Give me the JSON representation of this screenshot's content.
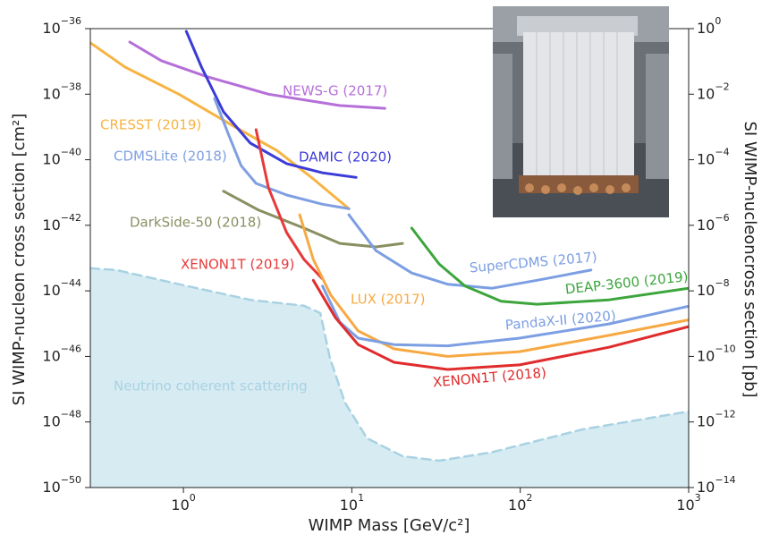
{
  "chart_data": {
    "type": "line",
    "xlabel": "WIMP Mass [GeV/c²]",
    "ylabel": "SI WIMP-nucleon cross section [cm²]",
    "y2label": "SI WIMP-nucleoncross section [pb]",
    "xscale": "log",
    "yscale": "log",
    "xlim": [
      0.28,
      1000
    ],
    "ylim": [
      1e-50,
      1e-36
    ],
    "y2lim": [
      1e-14,
      1
    ],
    "xticks": [
      {
        "value": 1,
        "label": "10",
        "exponent": "0"
      },
      {
        "value": 10,
        "label": "10",
        "exponent": "1"
      },
      {
        "value": 100,
        "label": "10",
        "exponent": "2"
      },
      {
        "value": 1000,
        "label": "10",
        "exponent": "3"
      }
    ],
    "yticks": [
      {
        "value": 1e-36,
        "label": "10",
        "exponent": "−36"
      },
      {
        "value": 1e-38,
        "label": "10",
        "exponent": "−38"
      },
      {
        "value": 1e-40,
        "label": "10",
        "exponent": "−40"
      },
      {
        "value": 1e-42,
        "label": "10",
        "exponent": "−42"
      },
      {
        "value": 1e-44,
        "label": "10",
        "exponent": "−44"
      },
      {
        "value": 1e-46,
        "label": "10",
        "exponent": "−46"
      },
      {
        "value": 1e-48,
        "label": "10",
        "exponent": "−48"
      },
      {
        "value": 1e-50,
        "label": "10",
        "exponent": "−50"
      }
    ],
    "y2ticks": [
      {
        "value": 1,
        "label": "10",
        "exponent": "0"
      },
      {
        "value": 0.01,
        "label": "10",
        "exponent": "−2"
      },
      {
        "value": 0.0001,
        "label": "10",
        "exponent": "−4"
      },
      {
        "value": 1e-06,
        "label": "10",
        "exponent": "−6"
      },
      {
        "value": 1e-08,
        "label": "10",
        "exponent": "−8"
      },
      {
        "value": 1e-10,
        "label": "10",
        "exponent": "−10"
      },
      {
        "value": 1e-12,
        "label": "10",
        "exponent": "−12"
      },
      {
        "value": 1e-14,
        "label": "10",
        "exponent": "−14"
      }
    ],
    "grid": false,
    "series": [
      {
        "name": "NEWS-G (2017)",
        "color": "#b56fd9",
        "x": [
          0.48,
          0.74,
          1.36,
          3.2,
          8.5,
          15.7
        ],
        "values": [
          3.9e-37,
          1.05e-37,
          3.5e-38,
          1e-38,
          4.5e-39,
          3.7e-39
        ]
      },
      {
        "name": "CRESST (2019)",
        "color": "#f6b442",
        "x": [
          0.28,
          0.45,
          0.94,
          1.96,
          3.6,
          5.9,
          9.6
        ],
        "values": [
          3.7e-37,
          6.7e-38,
          1e-38,
          1.1e-39,
          1.9e-40,
          2.6e-41,
          3.2e-42
        ]
      },
      {
        "name": "DAMIC (2020)",
        "color": "#3b3bd8",
        "x": [
          1.04,
          1.28,
          1.73,
          2.5,
          4.1,
          6.7,
          10.6
        ],
        "values": [
          8.3e-37,
          6.7e-38,
          2.9e-39,
          3.2e-40,
          7.6e-41,
          4e-41,
          2.9e-41
        ]
      },
      {
        "name": "CDMSLite (2018)",
        "color": "#7f9fe2",
        "x": [
          1.53,
          1.85,
          2.2,
          2.7,
          4.1,
          6.7,
          9.6
        ],
        "values": [
          7.4e-39,
          6e-40,
          6.6e-41,
          1.9e-41,
          8.4e-42,
          4.4e-42,
          3.2e-42
        ]
      },
      {
        "name": "DarkSide-50 (2018)",
        "color": "#8a8f62",
        "x": [
          1.73,
          2.8,
          5.2,
          8.5,
          13.9,
          20
        ],
        "values": [
          1.1e-41,
          2.9e-42,
          8.2e-43,
          2.8e-43,
          2.2e-43,
          2.8e-43
        ]
      },
      {
        "name": "XENON1T (2019)",
        "color": "#e8393a",
        "x": [
          2.7,
          3.2,
          4.1,
          5.2,
          6.7
        ],
        "values": [
          8.3e-40,
          1.4e-41,
          6e-43,
          9.1e-44,
          2.3e-44
        ]
      },
      {
        "name": "SuperCDMS (2017)",
        "color": "#7c9ee3",
        "x": [
          9.6,
          13.9,
          22.7,
          37,
          68,
          126,
          263
        ],
        "values": [
          2.1e-42,
          1.7e-43,
          3.5e-44,
          1.6e-44,
          1.2e-44,
          2.1e-44,
          4.3e-44
        ]
      },
      {
        "name": "LUX (2017)",
        "color": "#f6a943",
        "x": [
          4.9,
          5.9,
          7.5,
          10.9,
          17.8,
          37,
          99,
          336,
          1000
        ],
        "values": [
          2.1e-42,
          9.1e-44,
          7.4e-45,
          6e-46,
          1.7e-46,
          1e-46,
          1.4e-46,
          4.4e-46,
          1.3e-45
        ]
      },
      {
        "name": "DEAP-3600 (2019)",
        "color": "#3ca53c",
        "x": [
          22.7,
          33,
          47,
          77,
          126,
          336,
          1000
        ],
        "values": [
          8.2e-43,
          6.6e-44,
          1.4e-44,
          4.8e-45,
          3.9e-45,
          5.3e-45,
          1.2e-44
        ]
      },
      {
        "name": "PandaX-II (2020)",
        "color": "#7c9ee3",
        "x": [
          6.7,
          8.5,
          10.9,
          17.8,
          37,
          99,
          336,
          1000
        ],
        "values": [
          1.4e-44,
          1.1e-45,
          3.6e-46,
          2.3e-46,
          2.1e-46,
          3.6e-46,
          9.8e-46,
          3.4e-45
        ]
      },
      {
        "name": "XENON1T (2018)",
        "color": "#e02c2c",
        "x": [
          5.9,
          8.0,
          10.9,
          17.8,
          37,
          99,
          336,
          1000
        ],
        "values": [
          2.1e-44,
          1.5e-45,
          2.3e-46,
          6.6e-47,
          4e-47,
          5.5e-47,
          1.9e-46,
          8.1e-46
        ]
      },
      {
        "name": "Neutrino coherent scattering",
        "color": "#a8d2e2",
        "fill": "#d7ebf3",
        "dashed": true,
        "area": true,
        "x": [
          0.28,
          0.4,
          0.94,
          2.5,
          5.2,
          6.5,
          7.4,
          9.1,
          12.3,
          20,
          33,
          68,
          233,
          1000
        ],
        "values": [
          4.9e-44,
          4.3e-44,
          1.6e-44,
          5.3e-45,
          3.5e-45,
          2.1e-45,
          9.1e-47,
          3.9e-48,
          3.2e-49,
          9e-50,
          6.6e-50,
          1.2e-49,
          5.9e-49,
          2.1e-48
        ]
      }
    ]
  }
}
